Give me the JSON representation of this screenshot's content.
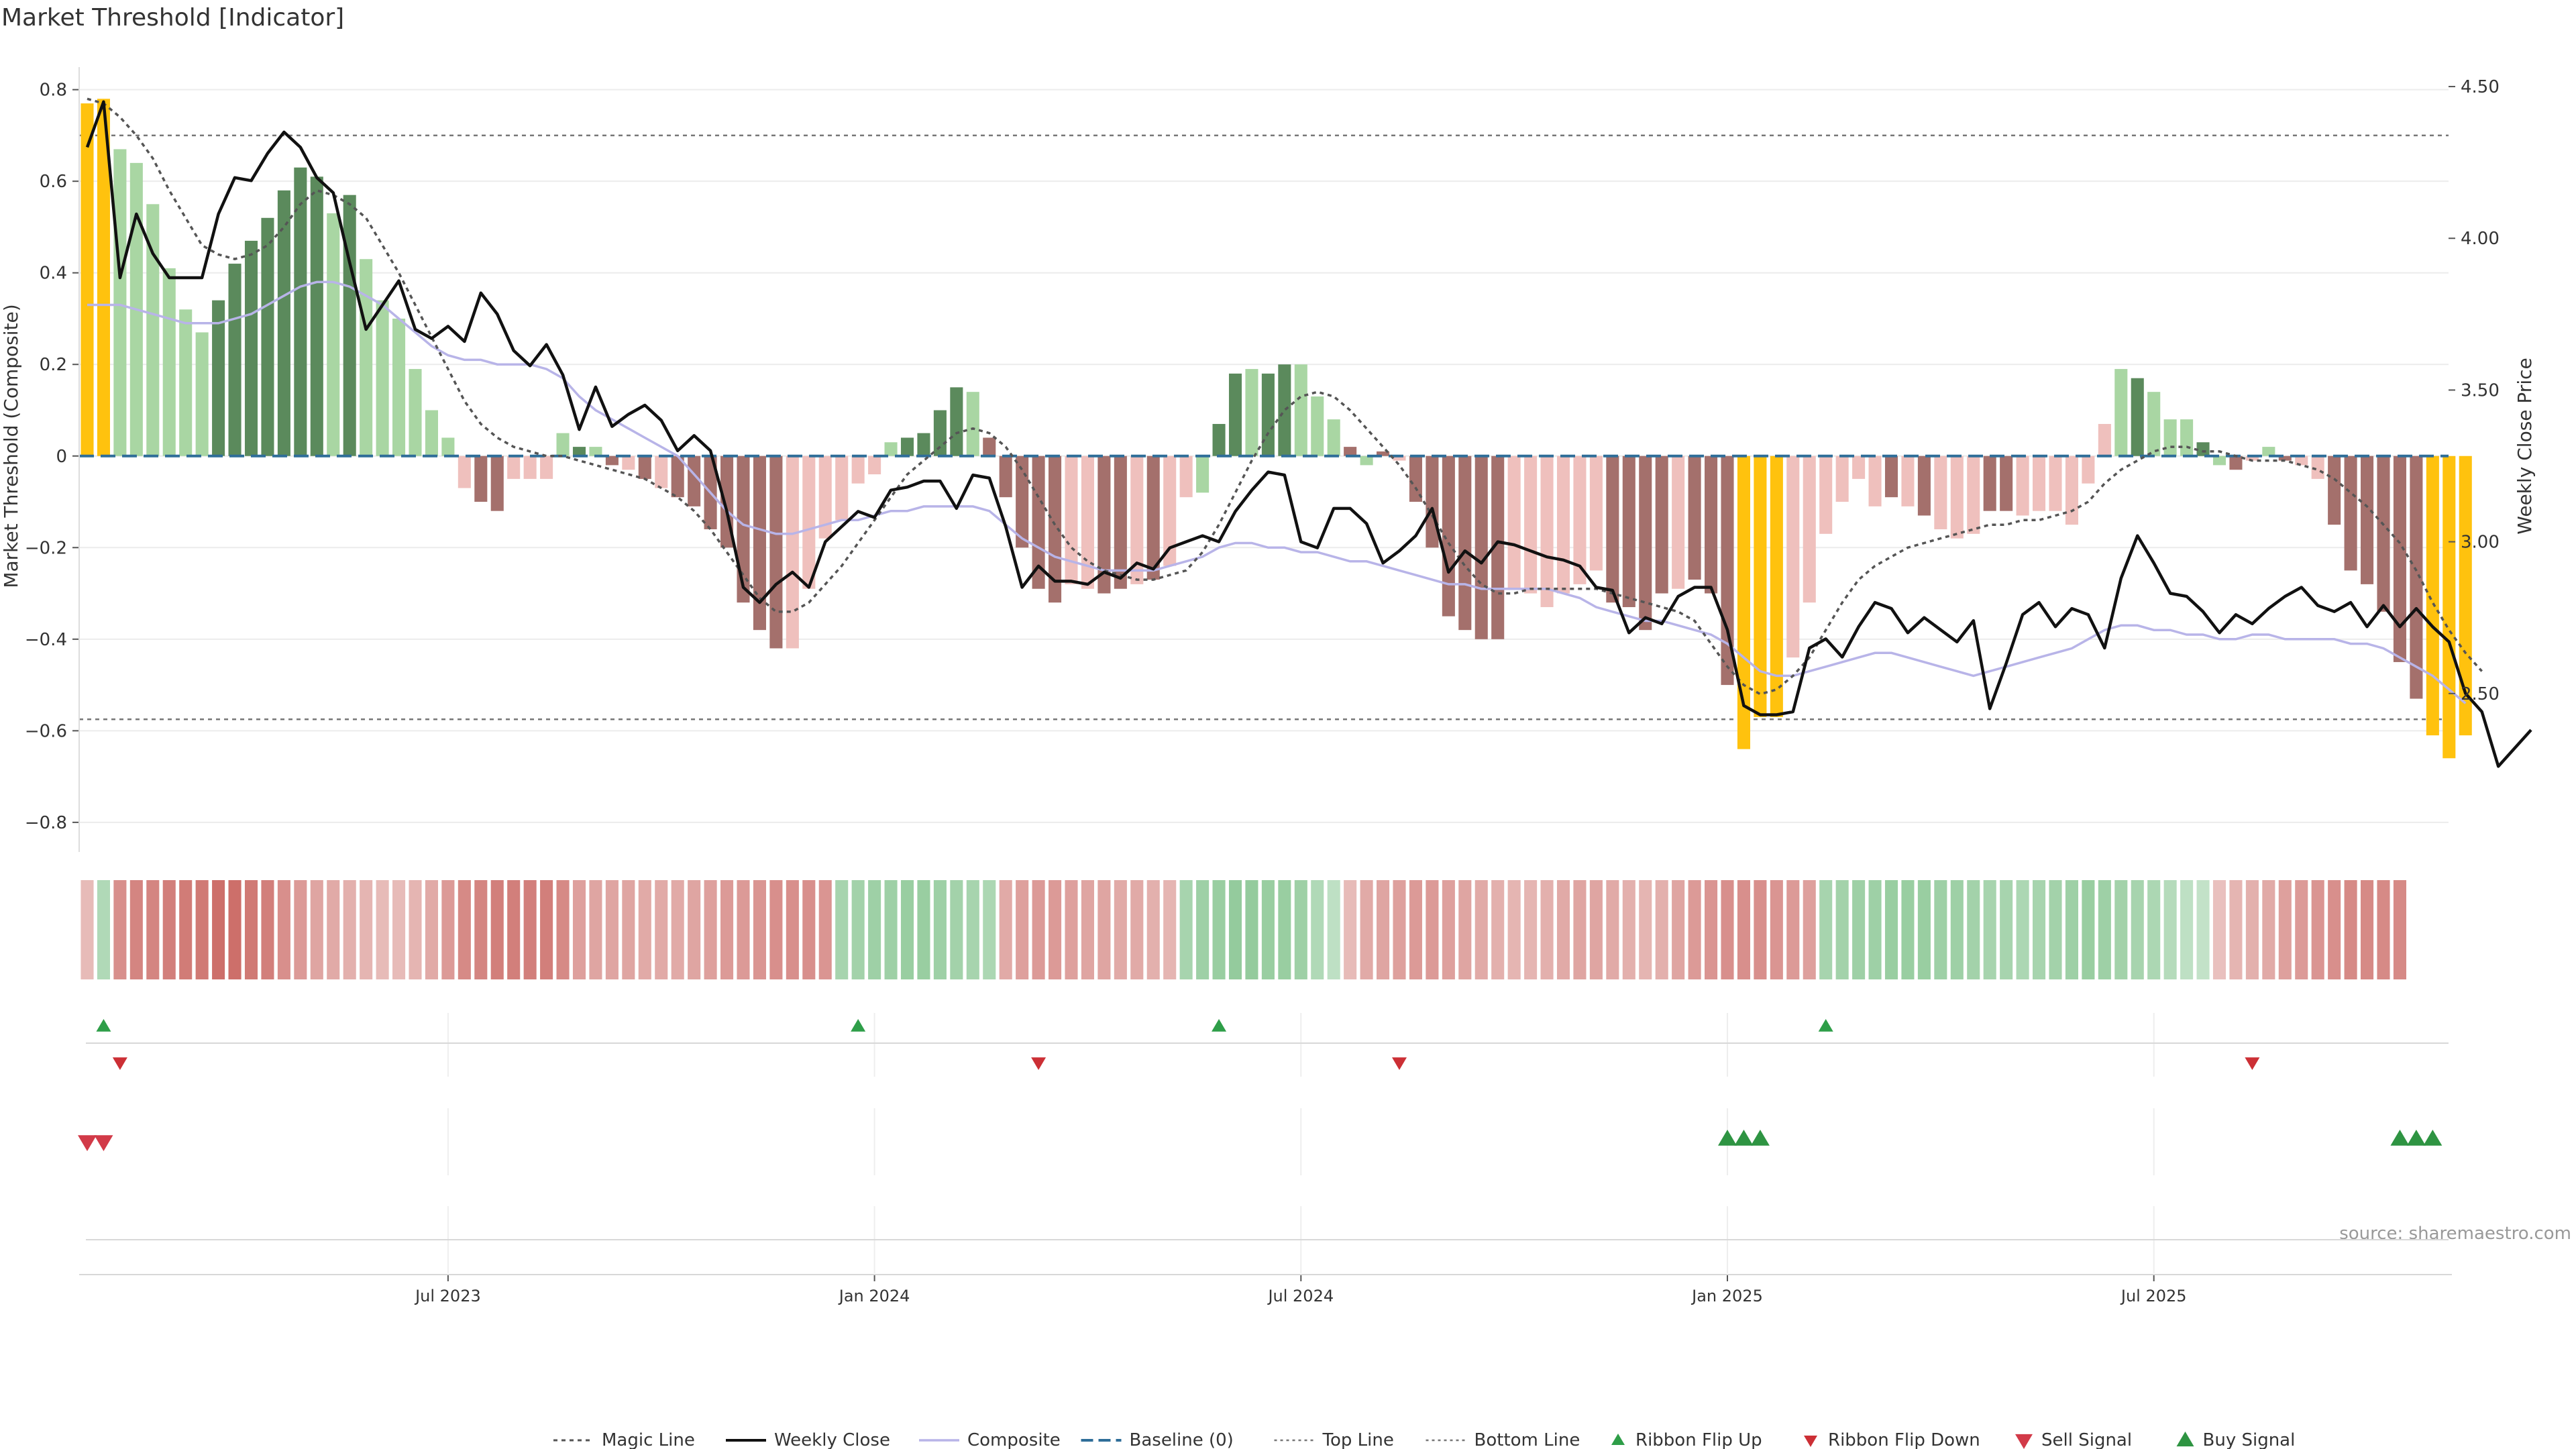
{
  "title": "Market Threshold [Indicator]",
  "source": "source: sharemaestro.com",
  "colors": {
    "bar_strong_up": "#5b8a5c",
    "bar_up": "#a9d6a3",
    "bar_strong_down": "#a4706c",
    "bar_down": "#efc0bd",
    "bar_extreme": "#ffc20e",
    "magic_line": "#555555",
    "weekly_close": "#111111",
    "composite": "#b8b4e8",
    "baseline": "#2f6e99",
    "threshold": "#777777",
    "flip_up": "#2e9e48",
    "flip_down": "#cc2f35",
    "sell_signal": "#d23a48",
    "buy_signal": "#2e9442",
    "ribbon_green": "#62b36f",
    "ribbon_red": "#c04b45"
  },
  "chart_data": {
    "type": "bar",
    "title": "Market Threshold [Indicator]",
    "ylabel": "Market Threshold (Composite)",
    "y2label": "Weekly Close Price",
    "ylim": [
      -0.85,
      0.82
    ],
    "y2lim": [
      2.0,
      4.52
    ],
    "yticks": [
      {
        "value": 0.8,
        "label": "0.8"
      },
      {
        "value": 0.6,
        "label": "0.6"
      },
      {
        "value": 0.4,
        "label": "0.4"
      },
      {
        "value": 0.2,
        "label": "0.2"
      },
      {
        "value": 0.0,
        "label": "0"
      },
      {
        "value": -0.2,
        "label": "−0.2"
      },
      {
        "value": -0.4,
        "label": "−0.4"
      },
      {
        "value": -0.6,
        "label": "−0.6"
      },
      {
        "value": -0.8,
        "label": "−0.8"
      }
    ],
    "y2ticks": [
      {
        "value": 4.5,
        "label": "4.50"
      },
      {
        "value": 4.0,
        "label": "4.00"
      },
      {
        "value": 3.5,
        "label": "3.50"
      },
      {
        "value": 3.0,
        "label": "3.00"
      },
      {
        "value": 2.5,
        "label": "2.50"
      }
    ],
    "xticks": [
      {
        "index": 22,
        "label": "Jul 2023"
      },
      {
        "index": 48,
        "label": "Jan 2024"
      },
      {
        "index": 74,
        "label": "Jul 2024"
      },
      {
        "index": 100,
        "label": "Jan 2025"
      },
      {
        "index": 126,
        "label": "Jul 2025"
      }
    ],
    "top_line": 0.7,
    "bottom_line": -0.575,
    "baseline": 0,
    "composite": [
      0.77,
      0.78,
      0.67,
      0.64,
      0.55,
      0.41,
      0.32,
      0.27,
      0.34,
      0.42,
      0.47,
      0.52,
      0.58,
      0.63,
      0.61,
      0.53,
      0.57,
      0.43,
      0.34,
      0.3,
      0.19,
      0.1,
      0.04,
      -0.07,
      -0.1,
      -0.12,
      -0.05,
      -0.05,
      -0.05,
      0.05,
      0.02,
      0.02,
      -0.02,
      -0.03,
      -0.05,
      -0.07,
      -0.09,
      -0.11,
      -0.16,
      -0.2,
      -0.32,
      -0.38,
      -0.42,
      -0.42,
      -0.29,
      -0.18,
      -0.14,
      -0.06,
      -0.04,
      0.03,
      0.04,
      0.05,
      0.1,
      0.15,
      0.14,
      0.04,
      -0.09,
      -0.2,
      -0.29,
      -0.32,
      -0.28,
      -0.29,
      -0.3,
      -0.29,
      -0.28,
      -0.27,
      -0.24,
      -0.09,
      -0.08,
      0.07,
      0.18,
      0.19,
      0.18,
      0.2,
      0.2,
      0.13,
      0.08,
      0.02,
      -0.02,
      0.01,
      -0.01,
      -0.1,
      -0.2,
      -0.35,
      -0.38,
      -0.4,
      -0.4,
      -0.29,
      -0.3,
      -0.33,
      -0.3,
      -0.28,
      -0.25,
      -0.32,
      -0.33,
      -0.38,
      -0.3,
      -0.29,
      -0.27,
      -0.3,
      -0.5,
      -0.64,
      -0.57,
      -0.57,
      -0.44,
      -0.32,
      -0.17,
      -0.1,
      -0.05,
      -0.11,
      -0.09,
      -0.11,
      -0.13,
      -0.16,
      -0.18,
      -0.17,
      -0.12,
      -0.12,
      -0.13,
      -0.12,
      -0.12,
      -0.15,
      -0.06,
      0.07,
      0.19,
      0.17,
      0.14,
      0.08,
      0.08,
      0.03,
      -0.02,
      -0.03,
      -0.01,
      0.02,
      -0.01,
      -0.02,
      -0.05,
      -0.15,
      -0.25,
      -0.28,
      -0.34,
      -0.45,
      -0.53,
      -0.61,
      -0.66,
      -0.61
    ],
    "bar_colors": [
      "extreme",
      "extreme",
      "up",
      "up",
      "up",
      "up",
      "up",
      "up",
      "strong_up",
      "strong_up",
      "strong_up",
      "strong_up",
      "strong_up",
      "strong_up",
      "strong_up",
      "up",
      "strong_up",
      "up",
      "up",
      "up",
      "up",
      "up",
      "up",
      "down",
      "strong_down",
      "strong_down",
      "down",
      "down",
      "down",
      "up",
      "strong_up",
      "up",
      "strong_down",
      "down",
      "strong_down",
      "down",
      "strong_down",
      "strong_down",
      "strong_down",
      "strong_down",
      "strong_down",
      "strong_down",
      "strong_down",
      "down",
      "down",
      "down",
      "down",
      "down",
      "down",
      "up",
      "strong_up",
      "strong_up",
      "strong_up",
      "strong_up",
      "up",
      "strong_down",
      "strong_down",
      "strong_down",
      "strong_down",
      "strong_down",
      "down",
      "down",
      "strong_down",
      "strong_down",
      "down",
      "strong_down",
      "down",
      "down",
      "up",
      "strong_up",
      "strong_up",
      "up",
      "strong_up",
      "strong_up",
      "up",
      "up",
      "up",
      "strong_down",
      "up",
      "strong_down",
      "down",
      "strong_down",
      "strong_down",
      "strong_down",
      "strong_down",
      "strong_down",
      "strong_down",
      "down",
      "down",
      "down",
      "down",
      "down",
      "down",
      "strong_down",
      "strong_down",
      "strong_down",
      "strong_down",
      "down",
      "strong_down",
      "strong_down",
      "strong_down",
      "extreme",
      "extreme",
      "extreme",
      "down",
      "down",
      "down",
      "down",
      "down",
      "down",
      "strong_down",
      "down",
      "strong_down",
      "down",
      "down",
      "down",
      "strong_down",
      "strong_down",
      "down",
      "down",
      "down",
      "down",
      "down",
      "down",
      "up",
      "strong_up",
      "up",
      "up",
      "up",
      "strong_up",
      "up",
      "strong_down",
      "down",
      "up",
      "strong_down",
      "down",
      "down",
      "strong_down",
      "strong_down",
      "strong_down",
      "strong_down",
      "strong_down",
      "strong_down",
      "extreme",
      "extreme",
      "extreme"
    ],
    "magic_line": [
      0.78,
      0.77,
      0.74,
      0.7,
      0.65,
      0.58,
      0.52,
      0.46,
      0.44,
      0.43,
      0.44,
      0.46,
      0.5,
      0.55,
      0.58,
      0.57,
      0.55,
      0.52,
      0.46,
      0.4,
      0.33,
      0.26,
      0.19,
      0.12,
      0.07,
      0.04,
      0.02,
      0.01,
      0.0,
      0.0,
      -0.01,
      -0.02,
      -0.03,
      -0.04,
      -0.05,
      -0.07,
      -0.09,
      -0.12,
      -0.16,
      -0.21,
      -0.26,
      -0.31,
      -0.34,
      -0.34,
      -0.32,
      -0.28,
      -0.24,
      -0.19,
      -0.14,
      -0.09,
      -0.04,
      -0.01,
      0.02,
      0.05,
      0.06,
      0.05,
      0.02,
      -0.03,
      -0.09,
      -0.15,
      -0.2,
      -0.23,
      -0.25,
      -0.26,
      -0.27,
      -0.27,
      -0.26,
      -0.25,
      -0.21,
      -0.15,
      -0.08,
      -0.01,
      0.05,
      0.1,
      0.13,
      0.14,
      0.13,
      0.1,
      0.06,
      0.02,
      -0.02,
      -0.07,
      -0.13,
      -0.19,
      -0.24,
      -0.28,
      -0.3,
      -0.3,
      -0.29,
      -0.29,
      -0.29,
      -0.29,
      -0.29,
      -0.3,
      -0.31,
      -0.32,
      -0.33,
      -0.34,
      -0.36,
      -0.41,
      -0.46,
      -0.5,
      -0.52,
      -0.51,
      -0.48,
      -0.44,
      -0.38,
      -0.32,
      -0.27,
      -0.24,
      -0.22,
      -0.2,
      -0.19,
      -0.18,
      -0.17,
      -0.16,
      -0.15,
      -0.15,
      -0.14,
      -0.14,
      -0.13,
      -0.12,
      -0.1,
      -0.06,
      -0.03,
      -0.01,
      0.01,
      0.02,
      0.02,
      0.01,
      0.01,
      0.0,
      -0.01,
      -0.01,
      -0.01,
      -0.02,
      -0.03,
      -0.05,
      -0.08,
      -0.11,
      -0.15,
      -0.19,
      -0.25,
      -0.32,
      -0.38,
      -0.43,
      -0.47
    ],
    "composite_line": [
      0.33,
      0.33,
      0.33,
      0.32,
      0.31,
      0.3,
      0.29,
      0.29,
      0.29,
      0.3,
      0.31,
      0.33,
      0.35,
      0.37,
      0.38,
      0.38,
      0.37,
      0.35,
      0.33,
      0.3,
      0.27,
      0.24,
      0.22,
      0.21,
      0.21,
      0.2,
      0.2,
      0.2,
      0.19,
      0.17,
      0.13,
      0.1,
      0.08,
      0.06,
      0.04,
      0.02,
      0.0,
      -0.04,
      -0.08,
      -0.12,
      -0.15,
      -0.16,
      -0.17,
      -0.17,
      -0.16,
      -0.15,
      -0.14,
      -0.14,
      -0.13,
      -0.12,
      -0.12,
      -0.11,
      -0.11,
      -0.11,
      -0.11,
      -0.12,
      -0.15,
      -0.18,
      -0.2,
      -0.22,
      -0.23,
      -0.24,
      -0.25,
      -0.25,
      -0.25,
      -0.25,
      -0.24,
      -0.23,
      -0.22,
      -0.2,
      -0.19,
      -0.19,
      -0.2,
      -0.2,
      -0.21,
      -0.21,
      -0.22,
      -0.23,
      -0.23,
      -0.24,
      -0.25,
      -0.26,
      -0.27,
      -0.28,
      -0.28,
      -0.29,
      -0.29,
      -0.29,
      -0.29,
      -0.29,
      -0.3,
      -0.31,
      -0.33,
      -0.34,
      -0.35,
      -0.36,
      -0.36,
      -0.37,
      -0.38,
      -0.39,
      -0.41,
      -0.44,
      -0.47,
      -0.48,
      -0.48,
      -0.47,
      -0.46,
      -0.45,
      -0.44,
      -0.43,
      -0.43,
      -0.44,
      -0.45,
      -0.46,
      -0.47,
      -0.48,
      -0.47,
      -0.46,
      -0.45,
      -0.44,
      -0.43,
      -0.42,
      -0.4,
      -0.38,
      -0.37,
      -0.37,
      -0.38,
      -0.38,
      -0.39,
      -0.39,
      -0.4,
      -0.4,
      -0.39,
      -0.39,
      -0.4,
      -0.4,
      -0.4,
      -0.4,
      -0.41,
      -0.41,
      -0.42,
      -0.44,
      -0.46,
      -0.48,
      -0.51,
      -0.54
    ],
    "weekly_close": [
      4.3,
      4.45,
      3.87,
      4.08,
      3.95,
      3.87,
      3.87,
      3.87,
      4.08,
      4.2,
      4.19,
      4.28,
      4.35,
      4.3,
      4.2,
      4.15,
      3.92,
      3.7,
      3.78,
      3.86,
      3.7,
      3.67,
      3.71,
      3.66,
      3.82,
      3.75,
      3.63,
      3.58,
      3.65,
      3.55,
      3.37,
      3.51,
      3.38,
      3.42,
      3.45,
      3.4,
      3.3,
      3.35,
      3.3,
      3.1,
      2.85,
      2.8,
      2.86,
      2.9,
      2.85,
      3.0,
      3.05,
      3.1,
      3.08,
      3.17,
      3.18,
      3.2,
      3.2,
      3.11,
      3.22,
      3.21,
      3.05,
      2.85,
      2.92,
      2.87,
      2.87,
      2.86,
      2.9,
      2.88,
      2.93,
      2.91,
      2.98,
      3.0,
      3.02,
      3.0,
      3.1,
      3.17,
      3.23,
      3.22,
      3.0,
      2.98,
      3.11,
      3.11,
      3.06,
      2.93,
      2.97,
      3.02,
      3.11,
      2.9,
      2.97,
      2.93,
      3.0,
      2.99,
      2.97,
      2.95,
      2.94,
      2.92,
      2.85,
      2.84,
      2.7,
      2.75,
      2.73,
      2.82,
      2.85,
      2.85,
      2.71,
      2.46,
      2.43,
      2.43,
      2.44,
      2.65,
      2.68,
      2.62,
      2.72,
      2.8,
      2.78,
      2.7,
      2.75,
      2.71,
      2.67,
      2.74,
      2.45,
      2.6,
      2.76,
      2.8,
      2.72,
      2.78,
      2.76,
      2.65,
      2.88,
      3.02,
      2.93,
      2.83,
      2.82,
      2.77,
      2.7,
      2.76,
      2.73,
      2.78,
      2.82,
      2.85,
      2.79,
      2.77,
      2.8,
      2.72,
      2.79,
      2.72,
      2.78,
      2.72,
      2.67,
      2.5,
      2.44,
      2.26,
      2.32,
      2.38
    ],
    "ribbon": [
      -0.3,
      0.5,
      -0.7,
      -0.8,
      -0.8,
      -0.85,
      -0.88,
      -0.9,
      -1,
      -1,
      -0.9,
      -0.85,
      -0.7,
      -0.6,
      -0.5,
      -0.45,
      -0.4,
      -0.35,
      -0.3,
      -0.3,
      -0.35,
      -0.45,
      -0.6,
      -0.75,
      -0.8,
      -0.85,
      -0.85,
      -0.85,
      -0.85,
      -0.75,
      -0.55,
      -0.5,
      -0.5,
      -0.5,
      -0.45,
      -0.45,
      -0.45,
      -0.5,
      -0.55,
      -0.6,
      -0.6,
      -0.65,
      -0.7,
      -0.7,
      -0.7,
      -0.65,
      0.6,
      0.65,
      0.7,
      0.7,
      0.75,
      0.75,
      0.7,
      0.65,
      0.6,
      0.55,
      -0.45,
      -0.55,
      -0.6,
      -0.6,
      -0.55,
      -0.5,
      -0.5,
      -0.45,
      -0.45,
      -0.4,
      -0.35,
      0.6,
      0.7,
      0.75,
      0.8,
      0.8,
      0.75,
      0.75,
      0.7,
      0.5,
      0.35,
      -0.3,
      -0.45,
      -0.5,
      -0.55,
      -0.6,
      -0.6,
      -0.55,
      -0.5,
      -0.45,
      -0.4,
      -0.35,
      -0.35,
      -0.4,
      -0.45,
      -0.5,
      -0.5,
      -0.45,
      -0.4,
      -0.35,
      -0.4,
      -0.5,
      -0.6,
      -0.65,
      -0.7,
      -0.7,
      -0.7,
      -0.65,
      -0.6,
      -0.55,
      0.6,
      0.65,
      0.7,
      0.7,
      0.75,
      0.75,
      0.75,
      0.7,
      0.7,
      0.65,
      0.6,
      0.6,
      0.55,
      0.6,
      0.65,
      0.7,
      0.75,
      0.7,
      0.65,
      0.6,
      0.55,
      0.45,
      0.35,
      0.3,
      -0.25,
      -0.35,
      -0.4,
      -0.45,
      -0.55,
      -0.6,
      -0.65,
      -0.7,
      -0.75,
      -0.75,
      -0.75,
      -0.75
    ],
    "ribbon_flip_up": [
      1,
      47,
      69,
      106
    ],
    "ribbon_flip_down": [
      2,
      58,
      80,
      132
    ],
    "sell_signal": [
      0,
      1
    ],
    "buy_signal": [
      100,
      101,
      102,
      141,
      142,
      143
    ],
    "legend": [
      "Magic Line",
      "Weekly Close",
      "Composite",
      "Baseline (0)",
      "Top Line",
      "Bottom Line",
      "Ribbon Flip Up",
      "Ribbon Flip Down",
      "Sell Signal",
      "Buy Signal"
    ]
  }
}
